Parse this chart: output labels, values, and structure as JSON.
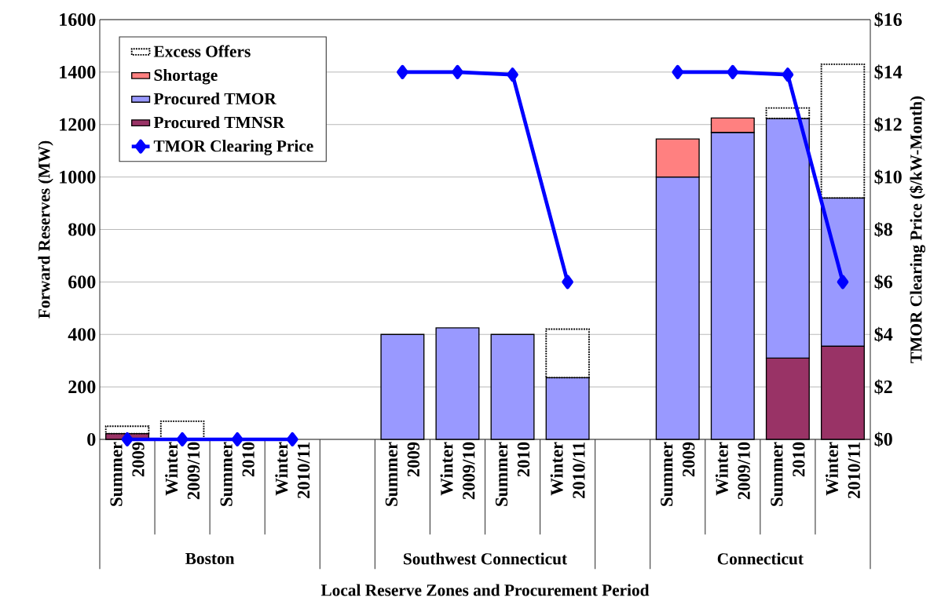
{
  "chart_data": {
    "type": "bar",
    "stacked": true,
    "categories": [
      "Summer 2009",
      "Winter 2009/10",
      "Summer 2010",
      "Winter 2010/11",
      null,
      "Summer 2009",
      "Winter 2009/10",
      "Summer 2010",
      "Winter 2010/11",
      null,
      "Summer 2009",
      "Winter 2009/10",
      "Summer 2010",
      "Winter 2010/11"
    ],
    "series": [
      {
        "name": "Procured TMNSR",
        "color": "#993366",
        "values": [
          22,
          null,
          null,
          null,
          null,
          null,
          null,
          null,
          null,
          null,
          null,
          null,
          310,
          355
        ]
      },
      {
        "name": "Procured TMOR",
        "color": "#9999ff",
        "values": [
          null,
          null,
          null,
          null,
          null,
          400,
          425,
          400,
          235,
          null,
          1000,
          1170,
          913,
          565
        ]
      },
      {
        "name": "Shortage",
        "color": "#ff8080",
        "values": [
          null,
          null,
          null,
          null,
          null,
          null,
          null,
          null,
          null,
          null,
          145,
          55,
          null,
          null
        ]
      },
      {
        "name": "Excess Offers",
        "color": "#000000",
        "line_style": "dotted",
        "values": [
          28,
          69,
          null,
          null,
          null,
          null,
          null,
          null,
          185,
          null,
          null,
          null,
          40,
          510
        ]
      },
      {
        "name": "TMOR Clearing Price",
        "type": "line",
        "axis": "y2",
        "color": "#0000ff",
        "marker": "diamond",
        "values": [
          0,
          0,
          0,
          0,
          null,
          14,
          14,
          13.9,
          6,
          null,
          14,
          14,
          13.9,
          6
        ]
      }
    ],
    "ylim": [
      0,
      1600
    ],
    "yticks": [
      0,
      200,
      400,
      600,
      800,
      1000,
      1200,
      1400,
      1600
    ],
    "y2lim": [
      0,
      16
    ],
    "y2ticks": [
      {
        "value": 0,
        "label": "$0"
      },
      {
        "value": 2,
        "label": "$2"
      },
      {
        "value": 4,
        "label": "$4"
      },
      {
        "value": 6,
        "label": "$6"
      },
      {
        "value": 8,
        "label": "$8"
      },
      {
        "value": 10,
        "label": "$10"
      },
      {
        "value": 12,
        "label": "$12"
      },
      {
        "value": 14,
        "label": "$14"
      },
      {
        "value": 16,
        "label": "$16"
      }
    ],
    "ylabel": "Forward Reserves (MW)",
    "y2label": "TMOR Clearing Price ($/kW-Month)",
    "xlabel": "Local Reserve Zones and Procurement Period",
    "annotations": [
      "Boston",
      "Southwest Connecticut",
      "Connecticut"
    ],
    "grid": "y",
    "legend": "top left"
  }
}
